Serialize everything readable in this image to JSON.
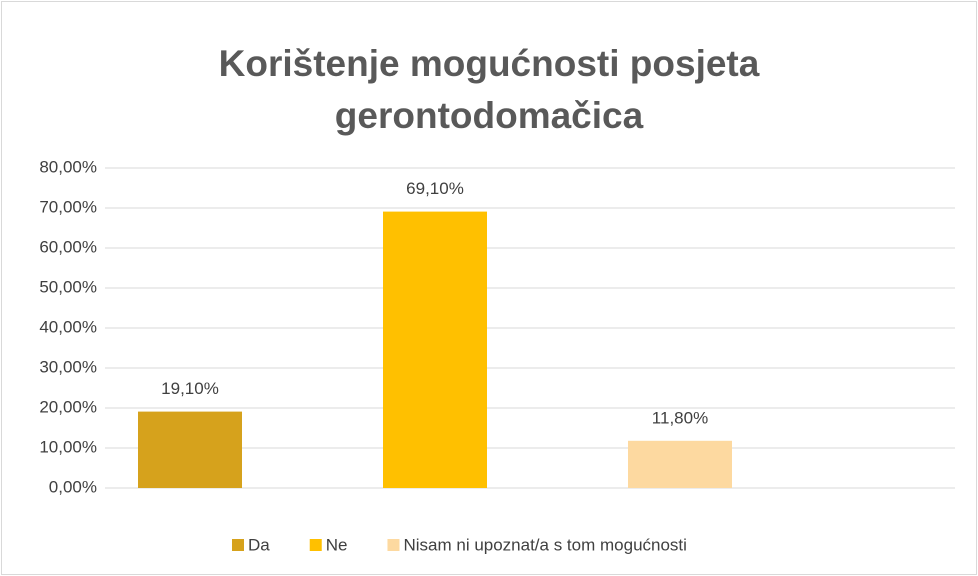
{
  "chart_data": {
    "type": "bar",
    "title": "Korištenje mogućnosti posjeta gerontodomačica",
    "series": [
      {
        "name": "Da",
        "color": "#d6a21c",
        "values": [
          19.1
        ],
        "value_labels": [
          "19,10%"
        ]
      },
      {
        "name": "Ne",
        "color": "#ffc000",
        "values": [
          69.1
        ],
        "value_labels": [
          "69,10%"
        ]
      },
      {
        "name": "Nisam ni upoznat/a s tom mogućnosti",
        "color": "#fdd9a0",
        "values": [
          11.8
        ],
        "value_labels": [
          "11,80%"
        ]
      }
    ],
    "ylim": [
      0,
      80
    ],
    "yticks": [
      {
        "value": 0,
        "label": "0,00%"
      },
      {
        "value": 10,
        "label": "10,00%"
      },
      {
        "value": 20,
        "label": "20,00%"
      },
      {
        "value": 30,
        "label": "30,00%"
      },
      {
        "value": 40,
        "label": "40,00%"
      },
      {
        "value": 50,
        "label": "50,00%"
      },
      {
        "value": 60,
        "label": "60,00%"
      },
      {
        "value": 70,
        "label": "70,00%"
      },
      {
        "value": 80,
        "label": "80,00%"
      }
    ],
    "grid": true,
    "legend": "bottom"
  }
}
